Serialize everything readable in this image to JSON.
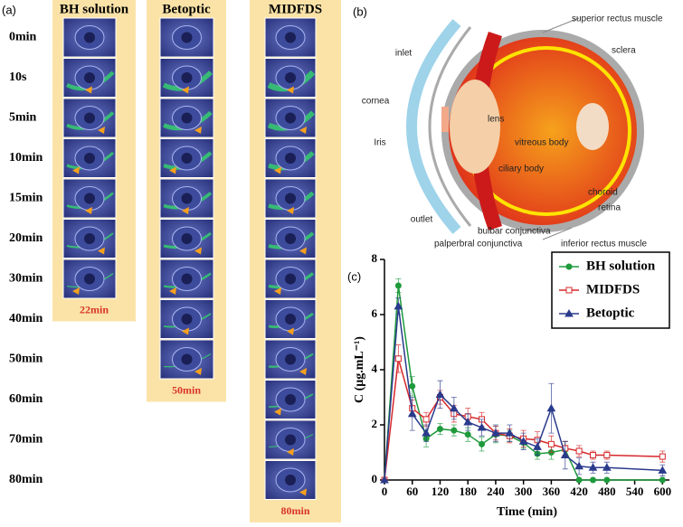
{
  "panel_a": {
    "label": "(a)",
    "row_labels": [
      "0min",
      "10s",
      "5min",
      "10min",
      "15min",
      "20min",
      "30min",
      "40min",
      "50min",
      "60min",
      "70min",
      "80min"
    ],
    "columns": [
      {
        "title": "BH solution",
        "duration": "22min"
      },
      {
        "title": "Betoptic",
        "duration": "50min"
      },
      {
        "title": "MIDFDS",
        "duration": "80min"
      }
    ]
  },
  "panel_b": {
    "label": "(b)",
    "labels": [
      "superior rectus muscle",
      "sclera",
      "inlet",
      "cornea",
      "lens",
      "Iris",
      "vitreous body",
      "ciliary body",
      "choroid",
      "retina",
      "outlet",
      "bulbar conjunctiva",
      "palperbral conjunctiva",
      "inferior rectus muscle"
    ]
  },
  "chart_data": {
    "type": "line",
    "label": "(c)",
    "xlabel": "Time (min)",
    "ylabel": "C (μg.mL⁻¹)",
    "x": [
      0,
      30,
      60,
      90,
      120,
      150,
      180,
      210,
      240,
      270,
      300,
      330,
      360,
      390,
      420,
      450,
      480,
      600
    ],
    "xlim": [
      0,
      615
    ],
    "xticks": [
      0,
      60,
      120,
      180,
      240,
      300,
      360,
      420,
      480,
      540,
      600
    ],
    "ylim": [
      0,
      8
    ],
    "yticks": [
      0,
      2,
      4,
      6,
      8
    ],
    "legend": "upper right",
    "series": [
      {
        "name": "BH solution",
        "color": "#1f9a3c",
        "marker": "circle",
        "values": [
          0,
          7.05,
          3.4,
          1.5,
          1.85,
          1.8,
          1.65,
          1.3,
          1.65,
          1.6,
          1.35,
          0.95,
          1.0,
          1.1,
          0,
          0,
          0,
          0
        ],
        "errors": [
          0,
          0.25,
          0.35,
          0.3,
          0.2,
          0.2,
          0.25,
          0.25,
          0.3,
          0.2,
          0.2,
          0.2,
          0.25,
          0.3,
          0,
          0,
          0,
          0
        ]
      },
      {
        "name": "MIDFDS",
        "color": "#d6282b",
        "marker": "square",
        "values": [
          0,
          4.4,
          2.6,
          2.2,
          3.0,
          2.4,
          2.3,
          2.2,
          1.7,
          1.6,
          1.5,
          1.45,
          1.3,
          1.15,
          1.05,
          0.9,
          0.9,
          0.85
        ],
        "errors": [
          0,
          0.5,
          0.3,
          0.25,
          0.25,
          0.3,
          0.3,
          0.25,
          0.25,
          0.25,
          0.3,
          0.3,
          0.3,
          0.25,
          0.2,
          0.15,
          0.15,
          0.2
        ]
      },
      {
        "name": "Betoptic",
        "color": "#2a3a8c",
        "marker": "triangle",
        "values": [
          0,
          6.3,
          2.4,
          1.7,
          3.1,
          2.6,
          2.1,
          1.9,
          1.7,
          1.7,
          1.4,
          1.2,
          2.6,
          0.9,
          0.5,
          0.45,
          0.45,
          0.35
        ],
        "errors": [
          0,
          0.3,
          0.6,
          0.3,
          0.5,
          0.4,
          0.3,
          0.3,
          0.3,
          0.3,
          0.3,
          0.3,
          0.9,
          0.5,
          0.3,
          0.2,
          0.2,
          0.2
        ]
      }
    ]
  }
}
